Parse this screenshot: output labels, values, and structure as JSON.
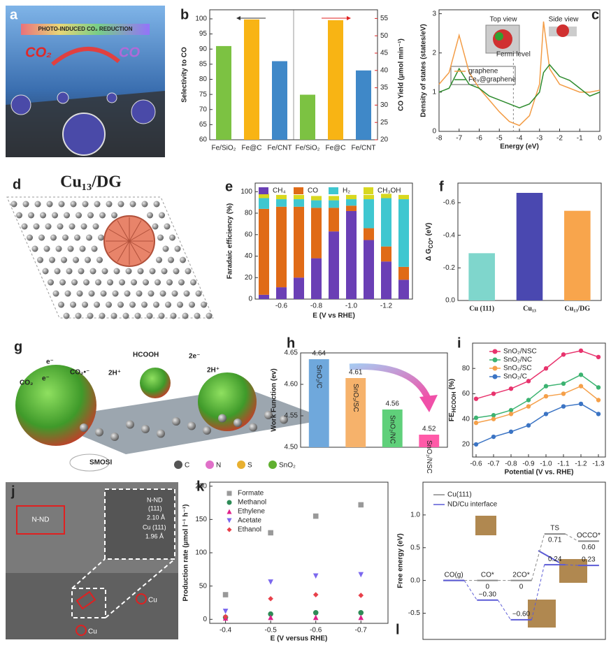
{
  "figures": {
    "a": {
      "panel": "a",
      "banner": "PHOTO-INDUCED CO₂ REDUCTION",
      "reactant": "CO₂",
      "product": "CO"
    },
    "d": {
      "panel": "d",
      "title": "Cu₁₃/DG"
    },
    "g": {
      "panel": "g",
      "labels": [
        "CO₂",
        "e⁻",
        "CO₂•⁻",
        "e⁻",
        "2H⁺",
        "HCOOH",
        "2e⁻",
        "2H⁺",
        "SMOSI"
      ],
      "legend": [
        "C",
        "N",
        "S",
        "SnO₂"
      ],
      "legend_colors": [
        "#555555",
        "#e070c8",
        "#e8b030",
        "#60b030"
      ]
    },
    "j": {
      "panel": "j",
      "labels": [
        "N-ND",
        "N-ND",
        "(111)",
        "2.10 Å",
        "Cu (111)",
        "1.96 Å",
        "Cu",
        "Cu"
      ]
    }
  },
  "chart_data": [
    {
      "panel": "b",
      "type": "bar",
      "categories": [
        "Fe/SiO₂",
        "Fe@C",
        "Fe/CNT",
        "Fe/SiO₂",
        "Fe@C",
        "Fe/CNT"
      ],
      "colors": [
        "#7cc242",
        "#f8b414",
        "#3f88c8",
        "#7cc242",
        "#f8b414",
        "#3f88c8"
      ],
      "ylabel": "Selectivity to CO",
      "ylim": [
        60,
        103
      ],
      "yticks": [
        60,
        65,
        70,
        75,
        80,
        85,
        90,
        95,
        100
      ],
      "y2label": "CO Yield (μmol min⁻¹)",
      "y2lim": [
        20,
        57.5
      ],
      "y2ticks": [
        20,
        25,
        30,
        35,
        40,
        45,
        50,
        55
      ],
      "y2color": "#e02020",
      "series": [
        {
          "values": [
            91,
            99.8,
            86,
            null,
            null,
            null
          ]
        },
        {
          "axis": "y2",
          "values": [
            null,
            null,
            null,
            33,
            54.5,
            40
          ]
        }
      ]
    },
    {
      "panel": "c",
      "type": "line",
      "x": [
        -8,
        -7.5,
        -7,
        -6.5,
        -6,
        -5.5,
        -5,
        -4.5,
        -4,
        -3.5,
        -3,
        -2.8,
        -2.5,
        -2,
        -1.5,
        -1,
        -0.5,
        0
      ],
      "xlabel": "Energy (eV)",
      "ylabel": "Density of states (states/eV)",
      "xlim": [
        -8,
        0
      ],
      "xticks": [
        -8,
        -7,
        -6,
        -5,
        -4,
        -3,
        -2,
        -1,
        0
      ],
      "ylim": [
        0,
        3.1
      ],
      "yticks": [
        0,
        1,
        2,
        3
      ],
      "series": [
        {
          "name": "graphene",
          "color": "#f39c45",
          "values": [
            1.2,
            1.5,
            2.45,
            1.5,
            1.1,
            0.8,
            0.5,
            0.25,
            0.15,
            0.4,
            1.2,
            2.8,
            1.6,
            1.2,
            1.1,
            1.0,
            1.0,
            1.05
          ]
        },
        {
          "name": "Fe₉@graphene",
          "color": "#2e8b2e",
          "values": [
            1.0,
            1.1,
            1.6,
            1.2,
            1.1,
            0.9,
            0.8,
            0.7,
            0.6,
            0.7,
            1.0,
            1.5,
            1.7,
            1.4,
            1.3,
            1.1,
            0.9,
            1.0
          ]
        }
      ],
      "vlines": [
        {
          "x": -4.3,
          "label": "Fermi level"
        }
      ],
      "annotations": [
        "Top view",
        "Side view"
      ]
    },
    {
      "panel": "e",
      "type": "stacked_bar",
      "x": [
        -0.5,
        -0.6,
        -0.7,
        -0.8,
        -0.9,
        -1.0,
        -1.1,
        -1.2,
        -1.3
      ],
      "xlim": [
        -0.45,
        -1.35
      ],
      "xticks": [
        -0.6,
        -0.8,
        {
          "value": -1.0,
          "label": "-1.0"
        },
        -1.2
      ],
      "xlabel": "E (V vs RHE)",
      "ylabel": "Faradaic efficiency (%)",
      "ylim": [
        0,
        108
      ],
      "yticks": [
        0,
        20,
        40,
        60,
        80,
        100
      ],
      "series": [
        {
          "name": "CH₄",
          "color": "#6a3fb5",
          "values": [
            4,
            11,
            20,
            38,
            63,
            82,
            55,
            35,
            18
          ]
        },
        {
          "name": "CO",
          "color": "#e06b17",
          "values": [
            80,
            75,
            66,
            47,
            22,
            5,
            11,
            14,
            12
          ]
        },
        {
          "name": "H₂",
          "color": "#3fc7d0",
          "values": [
            10,
            7,
            7,
            7,
            7,
            6,
            27,
            45,
            63
          ]
        },
        {
          "name": "CH₃OH",
          "color": "#d8d820",
          "values": [
            4,
            4,
            4,
            4,
            4,
            4,
            4,
            4,
            4
          ]
        }
      ]
    },
    {
      "panel": "f",
      "type": "bar",
      "categories": [
        "Cu (111)",
        "Cu₁₃",
        "Cu₁₃/DG"
      ],
      "values": [
        -0.29,
        -0.66,
        -0.55
      ],
      "colors": [
        "#7fd6cc",
        "#4a48b0",
        "#f8a54c"
      ],
      "ylim": [
        0,
        -0.72
      ],
      "yticks": [
        {
          "value": 0,
          "label": "0.0"
        },
        -0.2,
        -0.4,
        -0.6
      ],
      "ylabel": {
        "main": "Δ G",
        "sub": "CO*",
        "unit": "(eV)"
      }
    },
    {
      "panel": "h",
      "type": "bar",
      "categories": [
        "SnO₂/C",
        "SnO₂/SC",
        "SnO₂/NC",
        "SnO₂/NSC"
      ],
      "values": [
        4.64,
        4.61,
        4.56,
        4.52
      ],
      "colors": [
        "#6fa8dc",
        "#f6b26b",
        "#5fd07a",
        "#ff5aa8"
      ],
      "ylim": [
        4.5,
        4.65
      ],
      "yticks": [
        {
          "value": 4.5,
          "label": "4.50"
        },
        4.55,
        {
          "value": 4.6,
          "label": "4.60"
        },
        4.65
      ],
      "ylabel": "Work Function  (ev)"
    },
    {
      "panel": "i",
      "type": "line",
      "markers": true,
      "x": [
        -0.6,
        -0.7,
        -0.8,
        -0.9,
        -1.0,
        -1.1,
        -1.2,
        -1.3
      ],
      "xlim": [
        -0.58,
        -1.34
      ],
      "xticks": [
        -0.6,
        -0.7,
        -0.8,
        -0.9,
        {
          "value": -1.0,
          "label": "-1.0"
        },
        -1.1,
        -1.2,
        -1.3
      ],
      "xlabel": "Potential (V vs. RHE)",
      "ylabel": {
        "main": "FE",
        "sub": "HCOOH",
        "unit": "(%)"
      },
      "ylim": [
        10,
        100
      ],
      "yticks": [
        20,
        40,
        60,
        80
      ],
      "series": [
        {
          "name": "SnO₂/NSC",
          "color": "#e8336d",
          "values": [
            56,
            60,
            64,
            70,
            80,
            91,
            94,
            89
          ]
        },
        {
          "name": "SnO₂/NC",
          "color": "#3cb371",
          "values": [
            41,
            43,
            47,
            55,
            66,
            68,
            75,
            65
          ]
        },
        {
          "name": "SnO₂/SC",
          "color": "#f5a04a",
          "values": [
            37,
            40,
            44,
            50,
            58,
            60,
            66,
            55
          ]
        },
        {
          "name": "SnO₂/C",
          "color": "#3b74c4",
          "values": [
            20,
            26,
            30,
            35,
            44,
            50,
            52,
            44
          ]
        }
      ]
    },
    {
      "panel": "k",
      "type": "scatter",
      "x": [
        -0.4,
        -0.5,
        -0.6,
        -0.7
      ],
      "xlim": [
        -0.365,
        -0.76
      ],
      "xticks": [
        -0.4,
        -0.5,
        -0.6,
        -0.7
      ],
      "xlabel": "E (V versus RHE)",
      "ylabel": "Production rate (μmol l⁻¹ h⁻¹)",
      "ylim": [
        -6,
        206
      ],
      "yticks": [
        0,
        50,
        100,
        150,
        200
      ],
      "series": [
        {
          "name": "Formate",
          "color": "#999999",
          "marker": "square",
          "values": [
            37,
            130,
            155,
            172
          ]
        },
        {
          "name": "Methanol",
          "color": "#2e8b57",
          "marker": "circle",
          "values": [
            3,
            8,
            10,
            10
          ]
        },
        {
          "name": "Ethylene",
          "color": "#e0208a",
          "marker": "triangle",
          "values": [
            2,
            3,
            3,
            3
          ]
        },
        {
          "name": "Acetate",
          "color": "#7b68ee",
          "marker": "triangle-down",
          "values": [
            12,
            56,
            65,
            67
          ]
        },
        {
          "name": "Ethanol",
          "color": "#e8404a",
          "marker": "diamond",
          "values": [
            4,
            31,
            37,
            36
          ]
        }
      ]
    },
    {
      "panel": "l",
      "type": "energy_levels",
      "categories": [
        "CO(g)",
        "CO*",
        "2CO*",
        "TS",
        "OCCO*"
      ],
      "ylim": [
        -0.9,
        1.5
      ],
      "yticks": [
        -0.5,
        {
          "value": 0,
          "label": "0.0"
        },
        0.5,
        {
          "value": 1,
          "label": "1.0"
        }
      ],
      "ylabel": "Free energy (eV)",
      "series": [
        {
          "name": "Cu(111)",
          "color": "#888888",
          "values": [
            0,
            0,
            0,
            0.71,
            0.6
          ],
          "value_labels": [
            null,
            "0",
            "0",
            "0.71",
            "0.60"
          ]
        },
        {
          "name": "ND/Cu interface",
          "color": "#5b5bd6",
          "values": [
            0,
            -0.3,
            -0.6,
            0.24,
            0.23
          ],
          "value_labels": [
            null,
            "−0.30",
            "−0.60",
            "0.24",
            "0.23"
          ]
        }
      ]
    }
  ]
}
